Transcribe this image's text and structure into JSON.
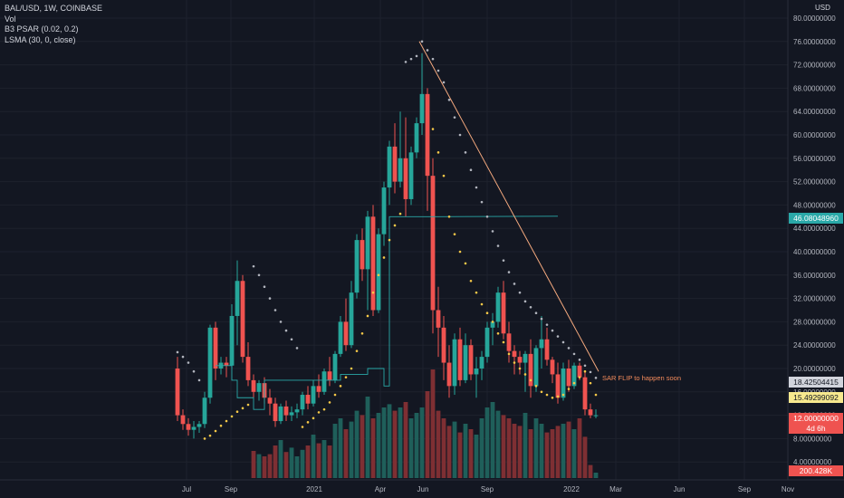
{
  "legend": {
    "symbol": "BAL/USD, 1W, COINBASE",
    "vol": "Vol",
    "psar": "B3 PSAR (0.02, 0.2)",
    "lsma": "LSMA (30, 0, close)"
  },
  "currency": "USD",
  "annotation": "SAR FLIP to happen soon",
  "price_tags": {
    "lsma_value": "46.08048960",
    "psar_upper": "18.42504415",
    "psar_lower": "15.49299092",
    "last_price": "12.00000000",
    "countdown": "4d 6h",
    "volume": "200.428K"
  },
  "colors": {
    "background": "#131722",
    "grid": "#1e222d",
    "up": "#26a69a",
    "down": "#ef5350",
    "vol_up": "#1f5f5a",
    "vol_down": "#7e2f33",
    "psar_above": "#b2b5be",
    "psar_below": "#f7c948",
    "lsma": "#2aa8a8",
    "trendline": "#f4a97e",
    "annotation": "#f48b5b"
  },
  "chart_data": {
    "type": "candlestick",
    "y_ticks": [
      "80.00000000",
      "76.00000000",
      "72.00000000",
      "68.00000000",
      "64.00000000",
      "60.00000000",
      "56.00000000",
      "52.00000000",
      "48.00000000",
      "44.00000000",
      "40.00000000",
      "36.00000000",
      "32.00000000",
      "28.00000000",
      "24.00000000",
      "20.00000000",
      "16.00000000",
      "12.00000000",
      "8.00000000",
      "4.00000000"
    ],
    "x_ticks": [
      "Jul",
      "Sep",
      "2021",
      "Apr",
      "Jun",
      "Sep",
      "2022",
      "Mar",
      "Jun",
      "Sep",
      "Nov"
    ],
    "ylim": [
      4,
      80
    ],
    "candles": [
      {
        "o": 20,
        "h": 22,
        "l": 11,
        "c": 12
      },
      {
        "o": 12,
        "h": 13,
        "l": 9.5,
        "c": 10.5
      },
      {
        "o": 10.5,
        "h": 11.5,
        "l": 8.5,
        "c": 9.5
      },
      {
        "o": 9.5,
        "h": 11,
        "l": 8,
        "c": 10
      },
      {
        "o": 10,
        "h": 11,
        "l": 9,
        "c": 10.5
      },
      {
        "o": 10.5,
        "h": 16,
        "l": 9.8,
        "c": 15
      },
      {
        "o": 15,
        "h": 27.5,
        "l": 14,
        "c": 27
      },
      {
        "o": 27,
        "h": 28,
        "l": 18,
        "c": 20
      },
      {
        "o": 20,
        "h": 22,
        "l": 19,
        "c": 21
      },
      {
        "o": 21,
        "h": 22,
        "l": 18.5,
        "c": 20.5
      },
      {
        "o": 20.5,
        "h": 31,
        "l": 20,
        "c": 29
      },
      {
        "o": 29,
        "h": 38.5,
        "l": 24,
        "c": 35
      },
      {
        "o": 35,
        "h": 36,
        "l": 21,
        "c": 22
      },
      {
        "o": 22,
        "h": 24.5,
        "l": 17,
        "c": 18
      },
      {
        "o": 18,
        "h": 19,
        "l": 15,
        "c": 16
      },
      {
        "o": 16,
        "h": 18,
        "l": 14.5,
        "c": 17.5
      },
      {
        "o": 17.5,
        "h": 18.5,
        "l": 14,
        "c": 15
      },
      {
        "o": 15,
        "h": 16.5,
        "l": 12,
        "c": 14
      },
      {
        "o": 14,
        "h": 15,
        "l": 10,
        "c": 11
      },
      {
        "o": 11,
        "h": 14,
        "l": 10.5,
        "c": 13.5
      },
      {
        "o": 13.5,
        "h": 14.5,
        "l": 11,
        "c": 12
      },
      {
        "o": 12,
        "h": 13.5,
        "l": 11,
        "c": 12.5
      },
      {
        "o": 12.5,
        "h": 14,
        "l": 11.5,
        "c": 13
      },
      {
        "o": 13,
        "h": 16,
        "l": 12,
        "c": 15.5
      },
      {
        "o": 15.5,
        "h": 17,
        "l": 13,
        "c": 14
      },
      {
        "o": 14,
        "h": 18,
        "l": 13.5,
        "c": 17
      },
      {
        "o": 17,
        "h": 19,
        "l": 15,
        "c": 16
      },
      {
        "o": 16,
        "h": 20,
        "l": 15.5,
        "c": 19.5
      },
      {
        "o": 19.5,
        "h": 22,
        "l": 17,
        "c": 18
      },
      {
        "o": 18,
        "h": 23,
        "l": 17.5,
        "c": 22.5
      },
      {
        "o": 22.5,
        "h": 29,
        "l": 22,
        "c": 28
      },
      {
        "o": 28,
        "h": 32,
        "l": 23,
        "c": 24
      },
      {
        "o": 24,
        "h": 35,
        "l": 23.5,
        "c": 33
      },
      {
        "o": 33,
        "h": 43,
        "l": 32,
        "c": 42
      },
      {
        "o": 42,
        "h": 44,
        "l": 35,
        "c": 37
      },
      {
        "o": 37,
        "h": 47,
        "l": 30,
        "c": 46
      },
      {
        "o": 46,
        "h": 48,
        "l": 29,
        "c": 30
      },
      {
        "o": 30,
        "h": 44,
        "l": 29.5,
        "c": 43
      },
      {
        "o": 43,
        "h": 52,
        "l": 41,
        "c": 51
      },
      {
        "o": 51,
        "h": 59,
        "l": 48,
        "c": 58
      },
      {
        "o": 58,
        "h": 62,
        "l": 50,
        "c": 52
      },
      {
        "o": 52,
        "h": 64,
        "l": 51,
        "c": 56
      },
      {
        "o": 56,
        "h": 63,
        "l": 46,
        "c": 49
      },
      {
        "o": 49,
        "h": 58,
        "l": 48,
        "c": 57
      },
      {
        "o": 57,
        "h": 63,
        "l": 56,
        "c": 62
      },
      {
        "o": 62,
        "h": 74,
        "l": 60,
        "c": 67
      },
      {
        "o": 67,
        "h": 68,
        "l": 47,
        "c": 53
      },
      {
        "o": 53,
        "h": 56,
        "l": 26,
        "c": 30
      },
      {
        "o": 30,
        "h": 34,
        "l": 22,
        "c": 27
      },
      {
        "o": 27,
        "h": 29,
        "l": 18,
        "c": 21
      },
      {
        "o": 21,
        "h": 24,
        "l": 15,
        "c": 17
      },
      {
        "o": 17,
        "h": 26,
        "l": 15.5,
        "c": 25
      },
      {
        "o": 25,
        "h": 27,
        "l": 17,
        "c": 18
      },
      {
        "o": 18,
        "h": 26,
        "l": 17.5,
        "c": 24
      },
      {
        "o": 24,
        "h": 25,
        "l": 18,
        "c": 19
      },
      {
        "o": 19,
        "h": 22,
        "l": 15,
        "c": 20
      },
      {
        "o": 20,
        "h": 23,
        "l": 18,
        "c": 22
      },
      {
        "o": 22,
        "h": 28,
        "l": 21,
        "c": 27
      },
      {
        "o": 27,
        "h": 29.5,
        "l": 24,
        "c": 28
      },
      {
        "o": 28,
        "h": 34,
        "l": 27,
        "c": 33
      },
      {
        "o": 33,
        "h": 35,
        "l": 25,
        "c": 26
      },
      {
        "o": 26,
        "h": 28,
        "l": 21,
        "c": 23
      },
      {
        "o": 23,
        "h": 24,
        "l": 19,
        "c": 22
      },
      {
        "o": 22,
        "h": 23,
        "l": 19,
        "c": 21
      },
      {
        "o": 21,
        "h": 23,
        "l": 16,
        "c": 22.5
      },
      {
        "o": 22.5,
        "h": 25,
        "l": 15,
        "c": 17
      },
      {
        "o": 17,
        "h": 24,
        "l": 16,
        "c": 23.5
      },
      {
        "o": 23.5,
        "h": 29,
        "l": 20,
        "c": 25
      },
      {
        "o": 25,
        "h": 27,
        "l": 20.5,
        "c": 21.5
      },
      {
        "o": 21.5,
        "h": 22,
        "l": 17.5,
        "c": 19
      },
      {
        "o": 19,
        "h": 21,
        "l": 14,
        "c": 15
      },
      {
        "o": 15,
        "h": 21,
        "l": 14.5,
        "c": 20
      },
      {
        "o": 20,
        "h": 21.5,
        "l": 16,
        "c": 17
      },
      {
        "o": 17,
        "h": 21,
        "l": 16.5,
        "c": 20.5
      },
      {
        "o": 20.5,
        "h": 21,
        "l": 18,
        "c": 18.5
      },
      {
        "o": 18.5,
        "h": 19.5,
        "l": 12,
        "c": 13
      },
      {
        "o": 13,
        "h": 14,
        "l": 11.5,
        "c": 12
      },
      {
        "o": 12,
        "h": 13,
        "l": 11.5,
        "c": 12
      }
    ],
    "volume_share": [
      0,
      0,
      0,
      0,
      0,
      0,
      0,
      0,
      0,
      0,
      0,
      0,
      0,
      0,
      0.25,
      0.22,
      0.2,
      0.22,
      0.3,
      0.35,
      0.24,
      0.28,
      0.2,
      0.26,
      0.3,
      0.4,
      0.32,
      0.35,
      0.3,
      0.5,
      0.55,
      0.45,
      0.52,
      0.62,
      0.58,
      0.75,
      0.55,
      0.6,
      0.65,
      0.68,
      0.62,
      0.65,
      0.7,
      0.55,
      0.6,
      0.65,
      0.8,
      1,
      0.62,
      0.55,
      0.48,
      0.52,
      0.42,
      0.5,
      0.45,
      0.4,
      0.55,
      0.65,
      0.7,
      0.62,
      0.58,
      0.55,
      0.5,
      0.48,
      0.6,
      0.45,
      0.55,
      0.5,
      0.42,
      0.45,
      0.48,
      0.5,
      0.52,
      0.45,
      0.55,
      0.38,
      0.12,
      0.05
    ],
    "psar": [
      {
        "i": 0,
        "v": 22.8,
        "pos": "above"
      },
      {
        "i": 1,
        "v": 22,
        "pos": "above"
      },
      {
        "i": 2,
        "v": 21,
        "pos": "above"
      },
      {
        "i": 3,
        "v": 19.5,
        "pos": "above"
      },
      {
        "i": 4,
        "v": 18,
        "pos": "above"
      },
      {
        "i": 5,
        "v": 8,
        "pos": "below"
      },
      {
        "i": 6,
        "v": 8.5,
        "pos": "below"
      },
      {
        "i": 7,
        "v": 9.3,
        "pos": "below"
      },
      {
        "i": 8,
        "v": 10.2,
        "pos": "below"
      },
      {
        "i": 9,
        "v": 11,
        "pos": "below"
      },
      {
        "i": 10,
        "v": 11.8,
        "pos": "below"
      },
      {
        "i": 11,
        "v": 12.6,
        "pos": "below"
      },
      {
        "i": 12,
        "v": 13.2,
        "pos": "below"
      },
      {
        "i": 13,
        "v": 13.8,
        "pos": "below"
      },
      {
        "i": 14,
        "v": 37.5,
        "pos": "above"
      },
      {
        "i": 15,
        "v": 36,
        "pos": "above"
      },
      {
        "i": 16,
        "v": 34,
        "pos": "above"
      },
      {
        "i": 17,
        "v": 32,
        "pos": "above"
      },
      {
        "i": 18,
        "v": 30,
        "pos": "above"
      },
      {
        "i": 19,
        "v": 28,
        "pos": "above"
      },
      {
        "i": 20,
        "v": 26.5,
        "pos": "above"
      },
      {
        "i": 21,
        "v": 25,
        "pos": "above"
      },
      {
        "i": 22,
        "v": 23.5,
        "pos": "above"
      },
      {
        "i": 23,
        "v": 10,
        "pos": "below"
      },
      {
        "i": 24,
        "v": 10.8,
        "pos": "below"
      },
      {
        "i": 25,
        "v": 11.5,
        "pos": "below"
      },
      {
        "i": 26,
        "v": 12.5,
        "pos": "below"
      },
      {
        "i": 27,
        "v": 13,
        "pos": "below"
      },
      {
        "i": 28,
        "v": 14.2,
        "pos": "below"
      },
      {
        "i": 29,
        "v": 15.5,
        "pos": "below"
      },
      {
        "i": 30,
        "v": 17,
        "pos": "below"
      },
      {
        "i": 31,
        "v": 18.5,
        "pos": "below"
      },
      {
        "i": 32,
        "v": 20,
        "pos": "below"
      },
      {
        "i": 33,
        "v": 23,
        "pos": "below"
      },
      {
        "i": 34,
        "v": 26,
        "pos": "below"
      },
      {
        "i": 35,
        "v": 29,
        "pos": "below"
      },
      {
        "i": 36,
        "v": 33,
        "pos": "below"
      },
      {
        "i": 37,
        "v": 36,
        "pos": "below"
      },
      {
        "i": 38,
        "v": 39,
        "pos": "below"
      },
      {
        "i": 39,
        "v": 42,
        "pos": "below"
      },
      {
        "i": 40,
        "v": 44.5,
        "pos": "below"
      },
      {
        "i": 41,
        "v": 46.5,
        "pos": "below"
      },
      {
        "i": 42,
        "v": 72.5,
        "pos": "above"
      },
      {
        "i": 43,
        "v": 73,
        "pos": "above"
      },
      {
        "i": 44,
        "v": 73.5,
        "pos": "above"
      },
      {
        "i": 45,
        "v": 76,
        "pos": "above"
      },
      {
        "i": 46,
        "v": 74.5,
        "pos": "above"
      },
      {
        "i": 47,
        "v": 73,
        "pos": "above"
      },
      {
        "i": 48,
        "v": 71,
        "pos": "above"
      },
      {
        "i": 49,
        "v": 69,
        "pos": "above"
      },
      {
        "i": 50,
        "v": 66,
        "pos": "above"
      },
      {
        "i": 51,
        "v": 63,
        "pos": "above"
      },
      {
        "i": 52,
        "v": 60,
        "pos": "above"
      },
      {
        "i": 53,
        "v": 57,
        "pos": "above"
      },
      {
        "i": 54,
        "v": 54,
        "pos": "above"
      },
      {
        "i": 55,
        "v": 51,
        "pos": "above"
      },
      {
        "i": 56,
        "v": 48.5,
        "pos": "above"
      },
      {
        "i": 57,
        "v": 46,
        "pos": "above"
      },
      {
        "i": 58,
        "v": 43.5,
        "pos": "above"
      },
      {
        "i": 59,
        "v": 41,
        "pos": "above"
      },
      {
        "i": 60,
        "v": 38.5,
        "pos": "above"
      },
      {
        "i": 61,
        "v": 36.5,
        "pos": "above"
      },
      {
        "i": 62,
        "v": 34.5,
        "pos": "above"
      },
      {
        "i": 63,
        "v": 33,
        "pos": "above"
      },
      {
        "i": 64,
        "v": 31.5,
        "pos": "above"
      },
      {
        "i": 65,
        "v": 30.5,
        "pos": "above"
      },
      {
        "i": 66,
        "v": 29.5,
        "pos": "above"
      },
      {
        "i": 67,
        "v": 28.5,
        "pos": "above"
      },
      {
        "i": 68,
        "v": 27.5,
        "pos": "above"
      },
      {
        "i": 69,
        "v": 26.5,
        "pos": "above"
      },
      {
        "i": 70,
        "v": 25.5,
        "pos": "above"
      },
      {
        "i": 71,
        "v": 24.5,
        "pos": "above"
      },
      {
        "i": 72,
        "v": 23.5,
        "pos": "above"
      },
      {
        "i": 73,
        "v": 22.5,
        "pos": "above"
      },
      {
        "i": 74,
        "v": 21.5,
        "pos": "above"
      },
      {
        "i": 75,
        "v": 20.5,
        "pos": "above"
      },
      {
        "i": 76,
        "v": 19.4,
        "pos": "above"
      },
      {
        "i": 77,
        "v": 18.4,
        "pos": "above"
      },
      {
        "i": 47,
        "v": 61,
        "pos": "below"
      },
      {
        "i": 48,
        "v": 57,
        "pos": "below"
      },
      {
        "i": 49,
        "v": 53,
        "pos": "below"
      },
      {
        "i": 50,
        "v": 46,
        "pos": "below"
      },
      {
        "i": 51,
        "v": 43,
        "pos": "below"
      },
      {
        "i": 52,
        "v": 40,
        "pos": "below"
      },
      {
        "i": 53,
        "v": 38,
        "pos": "below"
      },
      {
        "i": 54,
        "v": 35,
        "pos": "below"
      },
      {
        "i": 55,
        "v": 33,
        "pos": "below"
      },
      {
        "i": 56,
        "v": 31,
        "pos": "below"
      },
      {
        "i": 57,
        "v": 29.5,
        "pos": "below"
      },
      {
        "i": 58,
        "v": 28,
        "pos": "below"
      },
      {
        "i": 59,
        "v": 26,
        "pos": "below"
      },
      {
        "i": 60,
        "v": 24.5,
        "pos": "below"
      },
      {
        "i": 61,
        "v": 22.5,
        "pos": "below"
      },
      {
        "i": 62,
        "v": 21,
        "pos": "below"
      },
      {
        "i": 63,
        "v": 20,
        "pos": "below"
      },
      {
        "i": 64,
        "v": 19,
        "pos": "below"
      },
      {
        "i": 65,
        "v": 18,
        "pos": "below"
      },
      {
        "i": 66,
        "v": 17,
        "pos": "below"
      },
      {
        "i": 67,
        "v": 16,
        "pos": "below"
      },
      {
        "i": 68,
        "v": 15.5,
        "pos": "below"
      },
      {
        "i": 69,
        "v": 15,
        "pos": "below"
      },
      {
        "i": 70,
        "v": 15.2,
        "pos": "below"
      },
      {
        "i": 71,
        "v": 15.5,
        "pos": "below"
      },
      {
        "i": 72,
        "v": 16.5,
        "pos": "below"
      },
      {
        "i": 73,
        "v": 17.5,
        "pos": "below"
      },
      {
        "i": 74,
        "v": 18.5,
        "pos": "below"
      },
      {
        "i": 75,
        "v": 19.5,
        "pos": "below"
      },
      {
        "i": 76,
        "v": 17.5,
        "pos": "below"
      },
      {
        "i": 77,
        "v": 15.5,
        "pos": "below"
      }
    ],
    "lsma": [
      {
        "i": 7,
        "v": 20.5
      },
      {
        "i": 10,
        "v": 20.5
      },
      {
        "i": 10,
        "v": 18
      },
      {
        "i": 11,
        "v": 18
      },
      {
        "i": 11,
        "v": 15
      },
      {
        "i": 14,
        "v": 15
      },
      {
        "i": 14,
        "v": 13
      },
      {
        "i": 16,
        "v": 13
      },
      {
        "i": 16,
        "v": 18
      },
      {
        "i": 30,
        "v": 18
      },
      {
        "i": 30,
        "v": 19
      },
      {
        "i": 35,
        "v": 19
      },
      {
        "i": 35,
        "v": 20
      },
      {
        "i": 38,
        "v": 20
      },
      {
        "i": 38,
        "v": 17
      },
      {
        "i": 39,
        "v": 17
      },
      {
        "i": 39,
        "v": 46
      },
      {
        "i": 48,
        "v": 46
      },
      {
        "i": 70,
        "v": 46.08
      }
    ],
    "trendline": {
      "i1": 44.5,
      "v1": 76,
      "i2": 77.5,
      "v2": 19.5
    }
  }
}
